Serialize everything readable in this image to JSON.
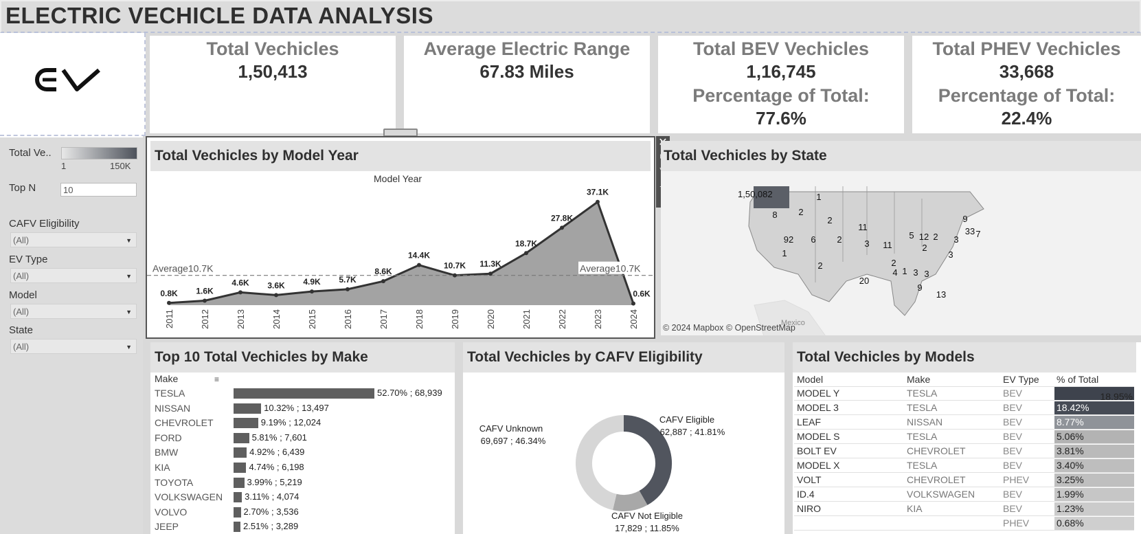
{
  "header": {
    "title": "ELECTRIC VECHICLE DATA ANALYSIS"
  },
  "logo": {
    "text": "EV"
  },
  "kpis": [
    {
      "title": "Total Vechicles",
      "value": "1,50,413"
    },
    {
      "title": "Average Electric Range",
      "value": "67.83 Miles"
    },
    {
      "title": "Total BEV Vechicles",
      "value": "1,16,745",
      "sub_title": "Percentage of Total:",
      "sub_value": "77.6%"
    },
    {
      "title": "Total PHEV Vechicles",
      "value": "33,668",
      "sub_title": "Percentage of Total:",
      "sub_value": "22.4%"
    }
  ],
  "filters": {
    "legend_label": "Total Ve..",
    "legend_min": "1",
    "legend_max": "150K",
    "topn_label": "Top N",
    "topn_value": "10",
    "cafv_label": "CAFV Eligibility",
    "cafv_value": "(All)",
    "evtype_label": "EV Type",
    "evtype_value": "(All)",
    "model_label": "Model",
    "model_value": "(All)",
    "state_label": "State",
    "state_value": "(All)"
  },
  "year_chart": {
    "title": "Total Vechicles by Model Year",
    "axis_title": "Model Year",
    "average_label": "Average10.7K",
    "tools": [
      "close-icon",
      "popout-icon",
      "filter-icon",
      "pin-icon",
      "more-icon"
    ]
  },
  "chart_data": {
    "type": "area",
    "title": "Total Vechicles by Model Year",
    "xlabel": "Model Year",
    "x": [
      "2011",
      "2012",
      "2013",
      "2014",
      "2015",
      "2016",
      "2017",
      "2018",
      "2019",
      "2020",
      "2021",
      "2022",
      "2023",
      "2024"
    ],
    "values": [
      0.8,
      1.6,
      4.6,
      3.6,
      4.9,
      5.7,
      8.6,
      14.4,
      10.7,
      11.3,
      18.7,
      27.8,
      37.1,
      0.6
    ],
    "labels": [
      "0.8K",
      "1.6K",
      "4.6K",
      "3.6K",
      "4.9K",
      "5.7K",
      "8.6K",
      "14.4K",
      "10.7K",
      "11.3K",
      "18.7K",
      "27.8K",
      "37.1K",
      "0.6K"
    ],
    "reference_line": {
      "label": "Average10.7K",
      "value": 10.7
    },
    "ylim": [
      0,
      40
    ],
    "grid": false
  },
  "state_map": {
    "title": "Total Vechicles by State",
    "attribution": "© 2024 Mapbox © OpenStreetMap",
    "country_label": "Mexico",
    "labels": [
      "1,50,082",
      "8",
      "2",
      "1",
      "2",
      "1",
      "92",
      "6",
      "2",
      "11",
      "3",
      "2",
      "11",
      "20",
      "4",
      "2",
      "1",
      "3",
      "3",
      "5",
      "12",
      "2",
      "2",
      "3",
      "33",
      "7",
      "9",
      "3",
      "13",
      "9"
    ]
  },
  "make_chart": {
    "title": "Top 10 Total Vechicles by Make",
    "header": "Make",
    "rows": [
      {
        "make": "TESLA",
        "label": "52.70% ; 68,939",
        "pct": 52.7
      },
      {
        "make": "NISSAN",
        "label": "10.32% ; 13,497",
        "pct": 10.32
      },
      {
        "make": "CHEVROLET",
        "label": "9.19% ; 12,024",
        "pct": 9.19
      },
      {
        "make": "FORD",
        "label": "5.81% ; 7,601",
        "pct": 5.81
      },
      {
        "make": "BMW",
        "label": "4.92% ; 6,439",
        "pct": 4.92
      },
      {
        "make": "KIA",
        "label": "4.74% ; 6,198",
        "pct": 4.74
      },
      {
        "make": "TOYOTA",
        "label": "3.99% ; 5,219",
        "pct": 3.99
      },
      {
        "make": "VOLKSWAGEN",
        "label": "3.11% ; 4,074",
        "pct": 3.11
      },
      {
        "make": "VOLVO",
        "label": "2.70% ; 3,536",
        "pct": 2.7
      },
      {
        "make": "JEEP",
        "label": "2.51% ; 3,289",
        "pct": 2.51
      }
    ]
  },
  "cafv_chart": {
    "title": "Total Vechicles by CAFV Eligibility",
    "slices": [
      {
        "name": "CAFV Eligible",
        "label": "62,887 ; 41.81%",
        "pct": 41.81,
        "color": "#51555e"
      },
      {
        "name": "CAFV Not Eligible",
        "label": "17,829 ; 11.85%",
        "pct": 11.85,
        "color": "#a8a8a8"
      },
      {
        "name": "CAFV Unknown",
        "label": "69,697 ; 46.34%",
        "pct": 46.34,
        "color": "#d6d6d6"
      }
    ]
  },
  "models_table": {
    "title": "Total Vechicles by Models",
    "headers": [
      "Model",
      "Make",
      "EV Type",
      "% of Total"
    ],
    "rows": [
      {
        "model": "MODEL Y",
        "make": "TESLA",
        "type": "BEV",
        "pct": "18.95%",
        "shade": "#3e434d"
      },
      {
        "model": "MODEL 3",
        "make": "TESLA",
        "type": "BEV",
        "pct": "18.42%",
        "shade": "#464b55"
      },
      {
        "model": "LEAF",
        "make": "NISSAN",
        "type": "BEV",
        "pct": "8.77%",
        "shade": "#8f9399"
      },
      {
        "model": "MODEL S",
        "make": "TESLA",
        "type": "BEV",
        "pct": "5.06%",
        "shade": "#b3b3b3"
      },
      {
        "model": "BOLT EV",
        "make": "CHEVROLET",
        "type": "BEV",
        "pct": "3.81%",
        "shade": "#bababa"
      },
      {
        "model": "MODEL X",
        "make": "TESLA",
        "type": "BEV",
        "pct": "3.40%",
        "shade": "#bebebe"
      },
      {
        "model": "VOLT",
        "make": "CHEVROLET",
        "type": "PHEV",
        "pct": "3.25%",
        "shade": "#bfbfbf"
      },
      {
        "model": "ID.4",
        "make": "VOLKSWAGEN",
        "type": "BEV",
        "pct": "1.99%",
        "shade": "#c6c6c6"
      },
      {
        "model": "NIRO",
        "make": "KIA",
        "type": "BEV",
        "pct": "1.23%",
        "shade": "#cbcbcb"
      },
      {
        "model": "",
        "make": "",
        "type": "PHEV",
        "pct": "0.68%",
        "shade": "#cfcfcf"
      }
    ]
  }
}
